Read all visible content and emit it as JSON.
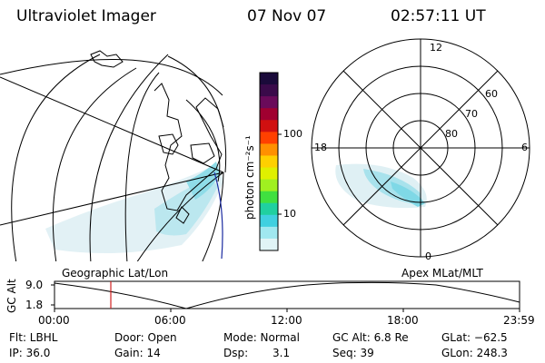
{
  "header": {
    "instrument": "Ultraviolet Imager",
    "date": "07 Nov 07",
    "time": "02:57:11 UT"
  },
  "colorbar": {
    "unit_label": "photon cm⁻²s⁻¹",
    "ticks": [
      "100",
      "10"
    ],
    "colors": [
      "#1a0a3a",
      "#3a0a4a",
      "#6a0a5a",
      "#a00030",
      "#d01010",
      "#ff4000",
      "#ff9000",
      "#ffd000",
      "#e0f000",
      "#a0f020",
      "#40e040",
      "#20d0a0",
      "#40d0e0",
      "#a0e8f0",
      "#e0f4f6"
    ]
  },
  "polar_plot": {
    "radial_labels": [
      "80",
      "70",
      "60"
    ],
    "mlt_labels": {
      "top": "12",
      "left": "18",
      "right": "6",
      "bottom": "0"
    }
  },
  "timeline": {
    "left_label": "Geographic Lat/Lon",
    "right_label": "Apex MLat/MLT",
    "y_axis_title": "GC Alt",
    "y_ticks": [
      "9.0",
      "1.8"
    ],
    "x_ticks": [
      "00:00",
      "06:00",
      "12:00",
      "18:00",
      "23:59"
    ],
    "marker_color": "#d02020"
  },
  "status": {
    "filter": "Flt: LBHL",
    "door": "Door: Open",
    "mode": "Mode: Normal",
    "gc_alt": "GC Alt: 6.8 Re",
    "glat": "GLat: −62.5",
    "ip": "IP: 36.0",
    "gain": "Gain: 14",
    "dsp": "Dsp:",
    "dsp_value": "3.1",
    "seq": "Seq: 39",
    "glon": "GLon: 248.3"
  }
}
